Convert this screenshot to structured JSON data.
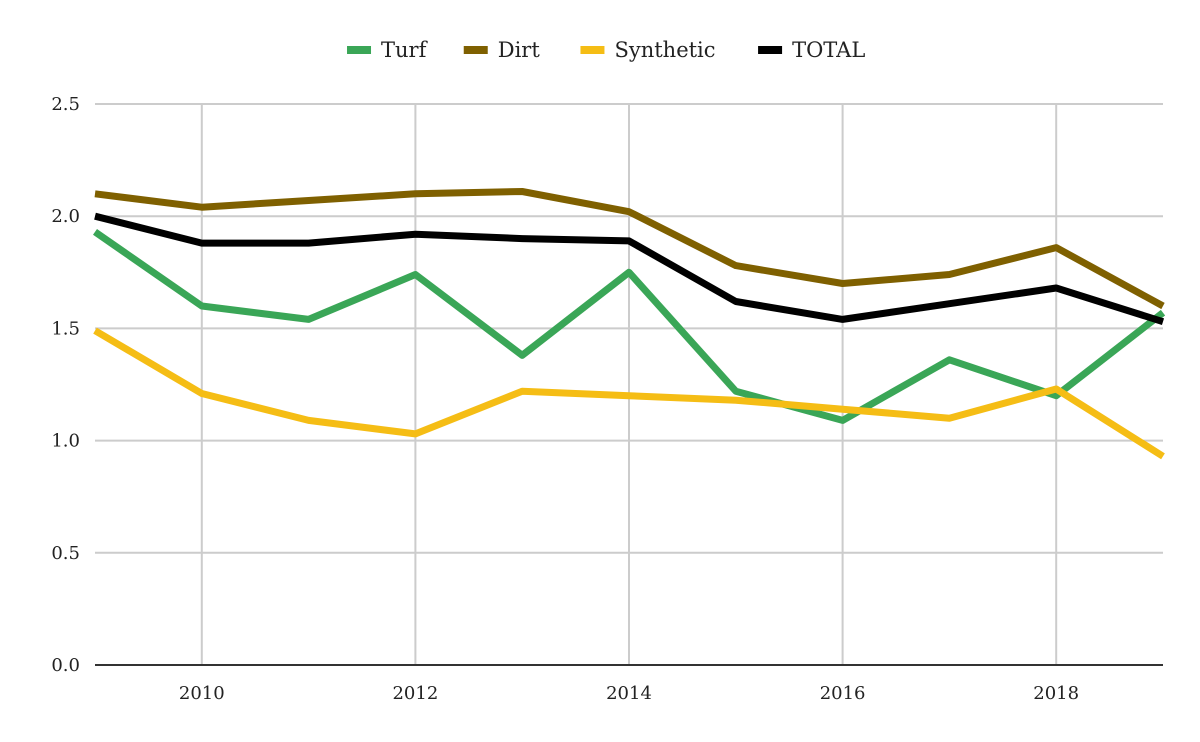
{
  "chart_data": {
    "type": "line",
    "title": "",
    "xlabel": "",
    "ylabel": "",
    "xlim": [
      2009,
      2019
    ],
    "ylim": [
      0,
      2.5
    ],
    "grid": true,
    "legend_position": "top-center",
    "x": [
      2009,
      2010,
      2011,
      2012,
      2013,
      2014,
      2015,
      2016,
      2017,
      2018,
      2019
    ],
    "xticks": [
      "2010",
      "2012",
      "2014",
      "2016",
      "2018"
    ],
    "yticks": [
      "0.0",
      "0.5",
      "1.0",
      "1.5",
      "2.0",
      "2.5"
    ],
    "series": [
      {
        "name": "Turf",
        "color": "#3aa657",
        "values": [
          1.93,
          1.6,
          1.54,
          1.74,
          1.38,
          1.75,
          1.22,
          1.09,
          1.36,
          1.2,
          1.57
        ]
      },
      {
        "name": "Dirt",
        "color": "#7f6000",
        "values": [
          2.1,
          2.04,
          2.07,
          2.1,
          2.11,
          2.02,
          1.78,
          1.7,
          1.74,
          1.86,
          1.6
        ]
      },
      {
        "name": "Synthetic",
        "color": "#f5bd15",
        "values": [
          1.49,
          1.21,
          1.09,
          1.03,
          1.22,
          1.2,
          1.18,
          1.14,
          1.1,
          1.23,
          0.93
        ]
      },
      {
        "name": "TOTAL",
        "color": "#000000",
        "values": [
          2.0,
          1.88,
          1.88,
          1.92,
          1.9,
          1.89,
          1.62,
          1.54,
          1.61,
          1.68,
          1.53
        ]
      }
    ]
  }
}
